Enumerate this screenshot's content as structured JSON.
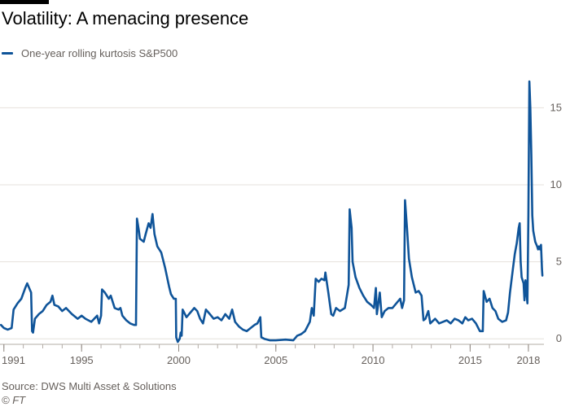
{
  "title": "Volatility: A menacing presence",
  "source": "Source: DWS Multi Asset & Solutions",
  "copyright": "© FT",
  "colors": {
    "line": "#0f5499",
    "grid": "#e6e1dc",
    "text": "#66605c"
  },
  "chart_data": {
    "type": "line",
    "title": "Volatility: A menacing presence",
    "xlabel": "",
    "ylabel": "",
    "xlim": [
      1990.8,
      2018.8
    ],
    "ylim": [
      -0.2,
      17.5
    ],
    "x_ticks": [
      1991,
      1995,
      2000,
      2005,
      2010,
      2015,
      2018
    ],
    "y_ticks": [
      0,
      5,
      10,
      15
    ],
    "grid": true,
    "legend": "top-left",
    "series": [
      {
        "name": "One-year rolling kurtosis S&P500",
        "points": [
          [
            1990.85,
            0.9
          ],
          [
            1991.0,
            0.7
          ],
          [
            1991.2,
            0.6
          ],
          [
            1991.4,
            0.7
          ],
          [
            1991.5,
            1.9
          ],
          [
            1991.7,
            2.3
          ],
          [
            1991.9,
            2.6
          ],
          [
            1992.1,
            3.3
          ],
          [
            1992.2,
            3.6
          ],
          [
            1992.4,
            3.0
          ],
          [
            1992.45,
            0.5
          ],
          [
            1992.5,
            0.4
          ],
          [
            1992.6,
            1.3
          ],
          [
            1992.8,
            1.6
          ],
          [
            1993.0,
            1.8
          ],
          [
            1993.2,
            2.2
          ],
          [
            1993.4,
            2.4
          ],
          [
            1993.5,
            2.8
          ],
          [
            1993.6,
            2.2
          ],
          [
            1993.8,
            2.1
          ],
          [
            1994.0,
            1.8
          ],
          [
            1994.2,
            2.0
          ],
          [
            1994.5,
            1.6
          ],
          [
            1994.8,
            1.3
          ],
          [
            1995.0,
            1.5
          ],
          [
            1995.2,
            1.3
          ],
          [
            1995.5,
            1.1
          ],
          [
            1995.8,
            1.5
          ],
          [
            1995.9,
            1.0
          ],
          [
            1996.0,
            1.5
          ],
          [
            1996.05,
            3.2
          ],
          [
            1996.2,
            3.0
          ],
          [
            1996.4,
            2.6
          ],
          [
            1996.5,
            2.8
          ],
          [
            1996.7,
            2.0
          ],
          [
            1996.9,
            1.9
          ],
          [
            1997.0,
            2.0
          ],
          [
            1997.1,
            1.5
          ],
          [
            1997.3,
            1.2
          ],
          [
            1997.5,
            1.0
          ],
          [
            1997.7,
            0.9
          ],
          [
            1997.8,
            0.9
          ],
          [
            1997.85,
            7.8
          ],
          [
            1997.95,
            7.0
          ],
          [
            1998.0,
            6.5
          ],
          [
            1998.2,
            6.3
          ],
          [
            1998.3,
            6.8
          ],
          [
            1998.45,
            7.5
          ],
          [
            1998.55,
            7.2
          ],
          [
            1998.65,
            8.1
          ],
          [
            1998.75,
            6.8
          ],
          [
            1998.9,
            6.0
          ],
          [
            1999.1,
            5.6
          ],
          [
            1999.3,
            4.6
          ],
          [
            1999.5,
            3.4
          ],
          [
            1999.6,
            2.9
          ],
          [
            1999.75,
            2.6
          ],
          [
            1999.85,
            2.6
          ],
          [
            1999.87,
            0.1
          ],
          [
            1999.95,
            -0.2
          ],
          [
            2000.05,
            0.0
          ],
          [
            2000.1,
            0.4
          ],
          [
            2000.15,
            0.2
          ],
          [
            2000.2,
            1.9
          ],
          [
            2000.4,
            1.4
          ],
          [
            2000.6,
            1.7
          ],
          [
            2000.8,
            2.0
          ],
          [
            2000.95,
            1.8
          ],
          [
            2001.1,
            1.3
          ],
          [
            2001.25,
            1.0
          ],
          [
            2001.4,
            1.9
          ],
          [
            2001.6,
            1.6
          ],
          [
            2001.8,
            1.3
          ],
          [
            2002.0,
            1.4
          ],
          [
            2002.2,
            1.2
          ],
          [
            2002.4,
            1.6
          ],
          [
            2002.6,
            1.3
          ],
          [
            2002.75,
            1.9
          ],
          [
            2002.9,
            1.1
          ],
          [
            2003.1,
            0.8
          ],
          [
            2003.3,
            0.6
          ],
          [
            2003.5,
            0.5
          ],
          [
            2003.7,
            0.7
          ],
          [
            2003.9,
            0.9
          ],
          [
            2004.05,
            1.0
          ],
          [
            2004.2,
            1.4
          ],
          [
            2004.25,
            0.1
          ],
          [
            2004.4,
            0.0
          ],
          [
            2004.7,
            -0.1
          ],
          [
            2005.0,
            -0.1
          ],
          [
            2005.5,
            -0.05
          ],
          [
            2005.9,
            -0.1
          ],
          [
            2006.1,
            0.2
          ],
          [
            2006.3,
            0.3
          ],
          [
            2006.5,
            0.5
          ],
          [
            2006.75,
            1.1
          ],
          [
            2006.85,
            2.0
          ],
          [
            2006.95,
            1.5
          ],
          [
            2007.05,
            3.9
          ],
          [
            2007.2,
            3.7
          ],
          [
            2007.35,
            3.9
          ],
          [
            2007.5,
            3.8
          ],
          [
            2007.55,
            4.3
          ],
          [
            2007.7,
            3.0
          ],
          [
            2007.85,
            1.6
          ],
          [
            2007.95,
            1.5
          ],
          [
            2008.1,
            2.0
          ],
          [
            2008.3,
            1.8
          ],
          [
            2008.55,
            2.0
          ],
          [
            2008.75,
            3.5
          ],
          [
            2008.8,
            8.4
          ],
          [
            2008.9,
            7.2
          ],
          [
            2008.95,
            5.0
          ],
          [
            2009.1,
            4.0
          ],
          [
            2009.3,
            3.3
          ],
          [
            2009.5,
            2.8
          ],
          [
            2009.7,
            2.4
          ],
          [
            2009.9,
            2.2
          ],
          [
            2010.05,
            2.0
          ],
          [
            2010.15,
            3.3
          ],
          [
            2010.2,
            1.6
          ],
          [
            2010.35,
            3.0
          ],
          [
            2010.45,
            1.4
          ],
          [
            2010.6,
            1.8
          ],
          [
            2010.8,
            2.0
          ],
          [
            2011.0,
            2.0
          ],
          [
            2011.2,
            2.3
          ],
          [
            2011.4,
            2.6
          ],
          [
            2011.5,
            2.0
          ],
          [
            2011.6,
            2.5
          ],
          [
            2011.65,
            9.0
          ],
          [
            2011.75,
            7.2
          ],
          [
            2011.85,
            5.2
          ],
          [
            2012.0,
            4.0
          ],
          [
            2012.2,
            3.0
          ],
          [
            2012.35,
            3.1
          ],
          [
            2012.5,
            2.8
          ],
          [
            2012.6,
            1.2
          ],
          [
            2012.7,
            1.3
          ],
          [
            2012.85,
            1.8
          ],
          [
            2012.95,
            1.0
          ],
          [
            2013.2,
            1.3
          ],
          [
            2013.4,
            1.0
          ],
          [
            2013.6,
            1.1
          ],
          [
            2013.8,
            1.2
          ],
          [
            2014.0,
            1.0
          ],
          [
            2014.2,
            1.3
          ],
          [
            2014.4,
            1.2
          ],
          [
            2014.6,
            1.0
          ],
          [
            2014.75,
            1.4
          ],
          [
            2014.9,
            1.2
          ],
          [
            2015.1,
            1.3
          ],
          [
            2015.3,
            1.0
          ],
          [
            2015.5,
            0.5
          ],
          [
            2015.65,
            0.5
          ],
          [
            2015.7,
            3.1
          ],
          [
            2015.85,
            2.4
          ],
          [
            2016.0,
            2.6
          ],
          [
            2016.15,
            2.0
          ],
          [
            2016.3,
            1.8
          ],
          [
            2016.45,
            1.3
          ],
          [
            2016.65,
            1.1
          ],
          [
            2016.85,
            1.2
          ],
          [
            2016.95,
            1.7
          ],
          [
            2017.05,
            3.0
          ],
          [
            2017.2,
            4.5
          ],
          [
            2017.3,
            5.5
          ],
          [
            2017.4,
            6.2
          ],
          [
            2017.5,
            7.2
          ],
          [
            2017.55,
            7.5
          ],
          [
            2017.6,
            5.0
          ],
          [
            2017.65,
            4.0
          ],
          [
            2017.75,
            3.6
          ],
          [
            2017.8,
            2.5
          ],
          [
            2017.85,
            3.8
          ],
          [
            2017.95,
            2.3
          ],
          [
            2018.0,
            8.0
          ],
          [
            2018.05,
            16.7
          ],
          [
            2018.1,
            15.0
          ],
          [
            2018.15,
            12.0
          ],
          [
            2018.2,
            8.0
          ],
          [
            2018.25,
            7.0
          ],
          [
            2018.35,
            6.3
          ],
          [
            2018.45,
            6.0
          ],
          [
            2018.5,
            5.8
          ],
          [
            2018.55,
            6.0
          ],
          [
            2018.6,
            5.8
          ],
          [
            2018.65,
            6.1
          ],
          [
            2018.7,
            4.5
          ],
          [
            2018.72,
            4.1
          ]
        ]
      }
    ]
  }
}
